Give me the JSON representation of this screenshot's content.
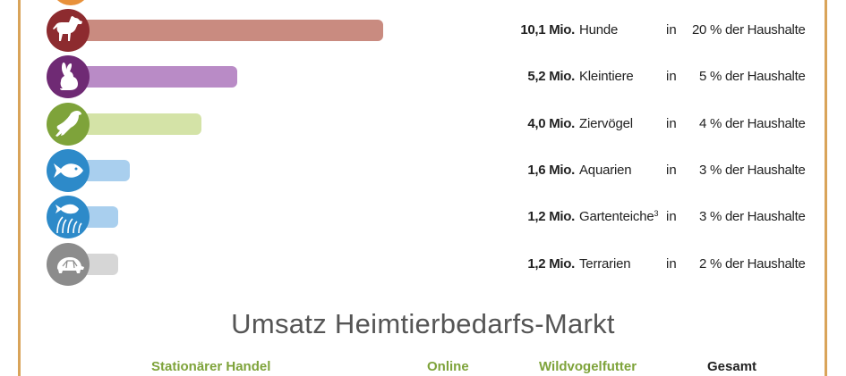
{
  "chart_data": {
    "type": "bar",
    "orientation": "horizontal",
    "unit": "Mio.",
    "rows": [
      {
        "key": "hund",
        "icon": "dog-icon",
        "color": "#c98b80",
        "circle": "#8d2b2f",
        "value": 10.1,
        "value_label": "10,1 Mio.",
        "label": "Hunde",
        "label_sup": "",
        "prefix": "in",
        "percent": "20 %",
        "suffix": "der Haushalte"
      },
      {
        "key": "klein",
        "icon": "rabbit-icon",
        "color": "#b98bc6",
        "circle": "#6f2a74",
        "value": 5.2,
        "value_label": "5,2 Mio.",
        "label": "Kleintiere",
        "label_sup": "",
        "prefix": "in",
        "percent": "5 %",
        "suffix": "der Haushalte"
      },
      {
        "key": "vogel",
        "icon": "bird-icon",
        "color": "#d4e3a7",
        "circle": "#7ea33a",
        "value": 4.0,
        "value_label": "4,0 Mio.",
        "label": "Ziervögel",
        "label_sup": "",
        "prefix": "in",
        "percent": "4 %",
        "suffix": "der Haushalte"
      },
      {
        "key": "aqua",
        "icon": "fish-icon",
        "color": "#a9cfee",
        "circle": "#2d8ac9",
        "value": 1.6,
        "value_label": "1,6 Mio.",
        "label": "Aquarien",
        "label_sup": "",
        "prefix": "in",
        "percent": "3 %",
        "suffix": "der Haushalte"
      },
      {
        "key": "teich",
        "icon": "pond-fish-icon",
        "color": "#a9cfee",
        "circle": "#2d8ac9",
        "value": 1.2,
        "value_label": "1,2 Mio.",
        "label": "Gartenteiche",
        "label_sup": "3",
        "prefix": "in",
        "percent": "3 %",
        "suffix": "der Haushalte"
      },
      {
        "key": "terra",
        "icon": "turtle-icon",
        "color": "#d6d6d6",
        "circle": "#8c8c8c",
        "value": 1.2,
        "value_label": "1,2 Mio.",
        "label": "Terrarien",
        "label_sup": "",
        "prefix": "in",
        "percent": "2 %",
        "suffix": "der Haushalte"
      }
    ]
  },
  "colors": {
    "frame": "#d9a45a",
    "title": "#555555",
    "header_green": "#7ea33a",
    "header_dark": "#222222"
  },
  "market": {
    "title": "Umsatz Heimtierbedarfs-Markt",
    "headers": [
      "Stationärer Handel",
      "Online",
      "Wildvogelfutter",
      "Gesamt"
    ]
  }
}
